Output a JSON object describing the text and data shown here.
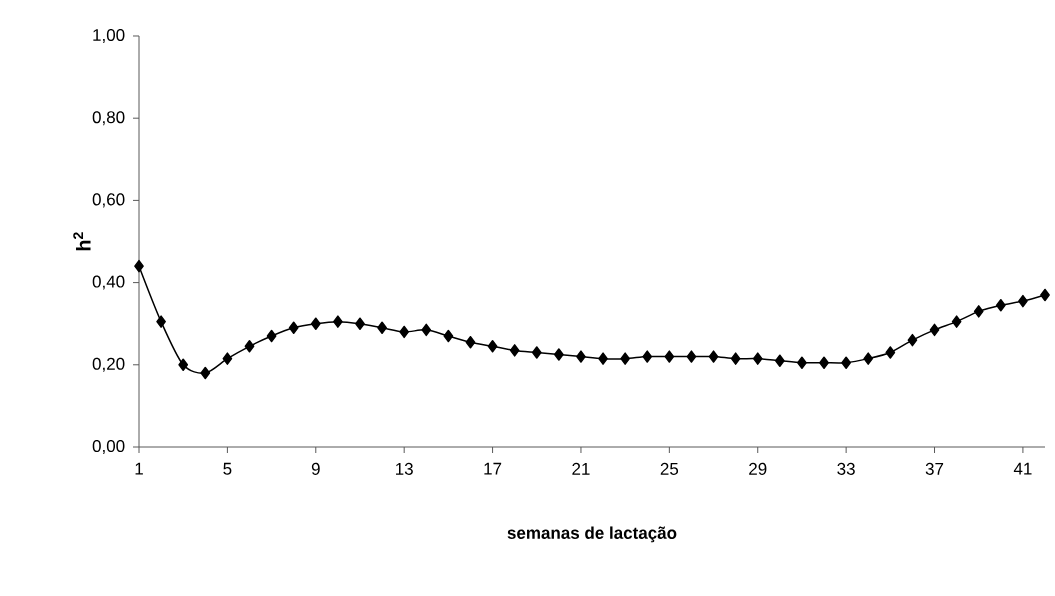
{
  "chart_data": {
    "type": "line",
    "xlabel": "semanas de lactação",
    "ylabel": "h$^{2}$",
    "x": [
      1,
      2,
      3,
      4,
      5,
      6,
      7,
      8,
      9,
      10,
      11,
      12,
      13,
      14,
      15,
      16,
      17,
      18,
      19,
      20,
      21,
      22,
      23,
      24,
      25,
      26,
      27,
      28,
      29,
      30,
      31,
      32,
      33,
      34,
      35,
      36,
      37,
      38,
      39,
      40,
      41,
      42
    ],
    "series": [
      {
        "color": "#000000",
        "values": [
          0.44,
          0.305,
          0.2,
          0.18,
          0.215,
          0.245,
          0.27,
          0.29,
          0.3,
          0.305,
          0.3,
          0.29,
          0.28,
          0.285,
          0.27,
          0.255,
          0.245,
          0.235,
          0.23,
          0.225,
          0.22,
          0.215,
          0.215,
          0.22,
          0.22,
          0.22,
          0.22,
          0.215,
          0.215,
          0.21,
          0.205,
          0.205,
          0.205,
          0.215,
          0.23,
          0.26,
          0.285,
          0.305,
          0.33,
          0.345,
          0.355,
          0.37
        ]
      }
    ],
    "xlim": [
      1,
      42
    ],
    "xticks": [
      1,
      5,
      9,
      13,
      17,
      21,
      25,
      29,
      33,
      37,
      41
    ],
    "ylim": [
      0,
      1
    ],
    "yticks": [
      {
        "value": 0,
        "label": "0,00"
      },
      {
        "value": 0.2,
        "label": "0,20"
      },
      {
        "value": 0.4,
        "label": "0,40"
      },
      {
        "value": 0.6,
        "label": "0,60"
      },
      {
        "value": 0.8,
        "label": "0,80"
      },
      {
        "value": 1,
        "label": "1,00"
      }
    ],
    "marker": "diamond",
    "line_style": "solid"
  }
}
